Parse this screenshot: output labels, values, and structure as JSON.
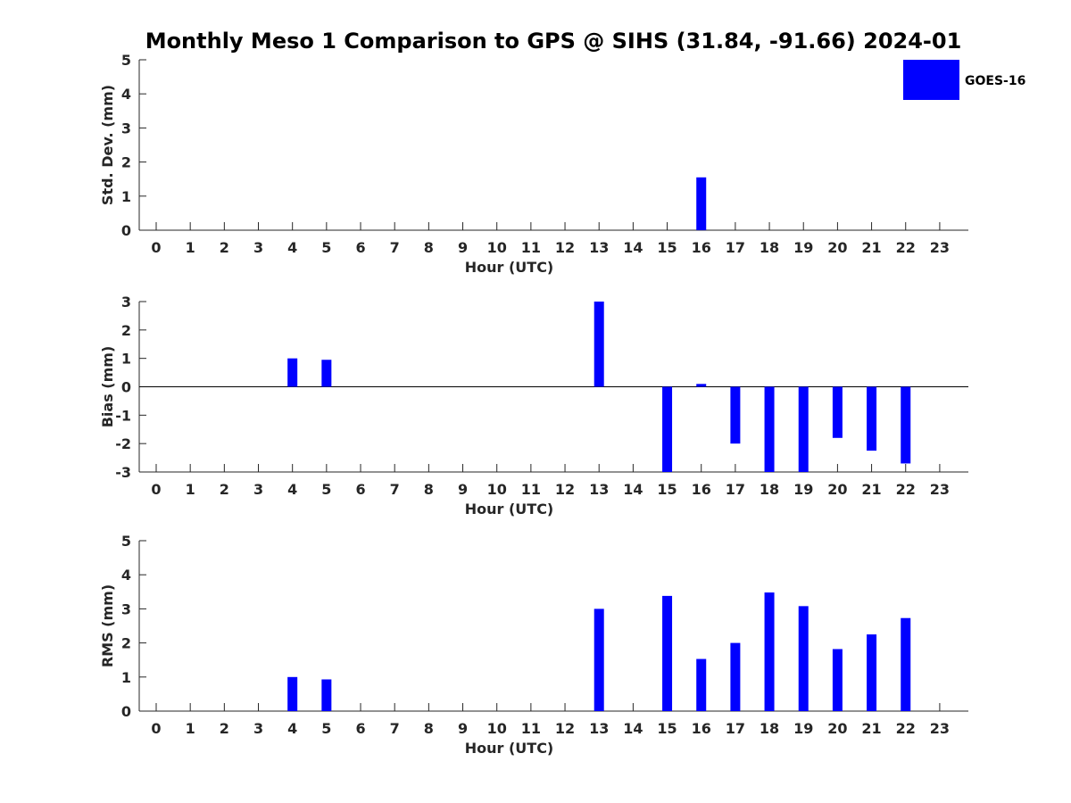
{
  "title": "Monthly Meso 1 Comparison to GPS @ SIHS (31.84, -91.66) 2024-01",
  "legend": {
    "label": "GOES-16",
    "color": "#0000ff",
    "placement": "top-right"
  },
  "chart_data": [
    {
      "type": "bar",
      "name": "std-dev",
      "categories": [
        "0",
        "1",
        "2",
        "3",
        "4",
        "5",
        "6",
        "7",
        "8",
        "9",
        "10",
        "11",
        "12",
        "13",
        "14",
        "15",
        "16",
        "17",
        "18",
        "19",
        "20",
        "21",
        "22",
        "23"
      ],
      "values": [
        null,
        null,
        null,
        null,
        null,
        null,
        null,
        null,
        null,
        null,
        null,
        null,
        null,
        null,
        null,
        null,
        1.55,
        null,
        null,
        null,
        null,
        null,
        null,
        null
      ],
      "xlabel": "Hour (UTC)",
      "ylabel": "Std. Dev. (mm)",
      "ylim": [
        0,
        5
      ],
      "yticks": [
        "0",
        "1",
        "2",
        "3",
        "4",
        "5"
      ],
      "color": "#0000ff"
    },
    {
      "type": "bar",
      "name": "bias",
      "categories": [
        "0",
        "1",
        "2",
        "3",
        "4",
        "5",
        "6",
        "7",
        "8",
        "9",
        "10",
        "11",
        "12",
        "13",
        "14",
        "15",
        "16",
        "17",
        "18",
        "19",
        "20",
        "21",
        "22",
        "23"
      ],
      "values": [
        null,
        null,
        null,
        null,
        1.0,
        0.95,
        null,
        null,
        null,
        null,
        null,
        null,
        null,
        3.0,
        null,
        -3.0,
        0.1,
        -2.0,
        -3.0,
        -3.0,
        -1.8,
        -2.25,
        -2.7,
        null
      ],
      "xlabel": "Hour (UTC)",
      "ylabel": "Bias (mm)",
      "ylim": [
        -3,
        3
      ],
      "yticks": [
        "-3",
        "-2",
        "-1",
        "0",
        "1",
        "2",
        "3"
      ],
      "color": "#0000ff"
    },
    {
      "type": "bar",
      "name": "rms",
      "categories": [
        "0",
        "1",
        "2",
        "3",
        "4",
        "5",
        "6",
        "7",
        "8",
        "9",
        "10",
        "11",
        "12",
        "13",
        "14",
        "15",
        "16",
        "17",
        "18",
        "19",
        "20",
        "21",
        "22",
        "23"
      ],
      "values": [
        null,
        null,
        null,
        null,
        1.0,
        0.93,
        null,
        null,
        null,
        null,
        null,
        null,
        null,
        3.0,
        null,
        3.38,
        1.53,
        2.0,
        3.48,
        3.08,
        1.82,
        2.25,
        2.73,
        null
      ],
      "xlabel": "Hour (UTC)",
      "ylabel": "RMS (mm)",
      "ylim": [
        0,
        5
      ],
      "yticks": [
        "0",
        "1",
        "2",
        "3",
        "4",
        "5"
      ],
      "color": "#0000ff"
    }
  ]
}
